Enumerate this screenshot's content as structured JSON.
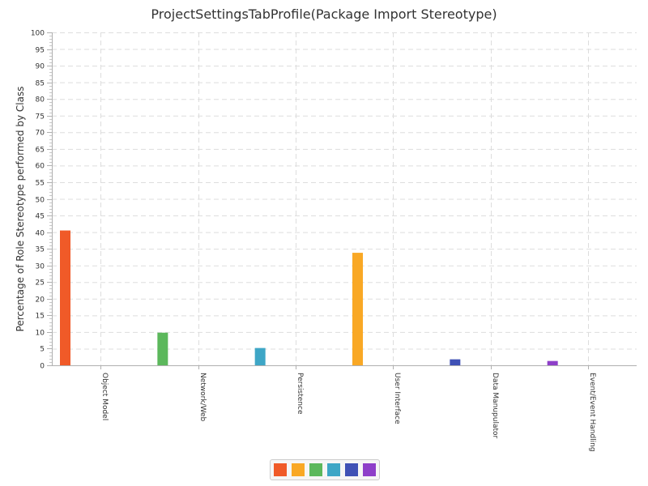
{
  "chart_data": {
    "type": "bar",
    "title": "ProjectSettingsTabProfile(Package Import Stereotype)",
    "xlabel": "",
    "ylabel": "Percentage of Role Stereotype performed by Class",
    "ylim": [
      0,
      100
    ],
    "yticks": [
      "0",
      "5",
      "10",
      "15",
      "20",
      "25",
      "30",
      "35",
      "40",
      "45",
      "50",
      "55",
      "60",
      "65",
      "70",
      "75",
      "80",
      "85",
      "90",
      "95",
      "100"
    ],
    "categories": [
      "Object Model",
      "Network/Web",
      "Persistence",
      "User Interface",
      "Data Manupulator",
      "Event/Event Handling"
    ],
    "values": [
      40.5,
      9.8,
      5.2,
      33.8,
      1.8,
      1.3
    ],
    "colors": [
      "#f05a28",
      "#5cb85c",
      "#3ea6c6",
      "#f9a825",
      "#3f51b5",
      "#8e3fc9"
    ],
    "legend": {
      "placement": "bottom-center",
      "entries": [
        {
          "name": "",
          "color": "#f05a28"
        },
        {
          "name": "",
          "color": "#f9a825"
        },
        {
          "name": "",
          "color": "#5cb85c"
        },
        {
          "name": "",
          "color": "#3ea6c6"
        },
        {
          "name": "",
          "color": "#3f51b5"
        },
        {
          "name": "",
          "color": "#8e3fc9"
        }
      ]
    },
    "grid": true
  }
}
